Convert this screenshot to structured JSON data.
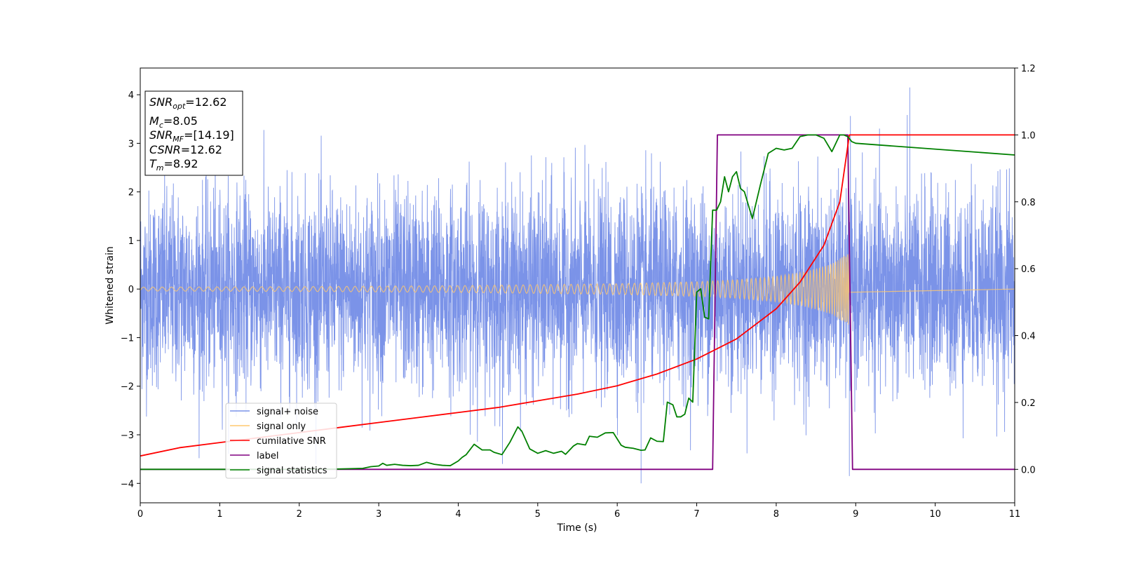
{
  "chart_data": {
    "type": "line",
    "xlabel": "Time (s)",
    "ylabel": "Whitened strain",
    "xlim": [
      0,
      11
    ],
    "ylim_left": [
      -4.4,
      4.55
    ],
    "ylim_right": [
      -0.1,
      1.2
    ],
    "x_ticks": [
      0,
      1,
      2,
      3,
      4,
      5,
      6,
      7,
      8,
      9,
      10,
      11
    ],
    "y_ticks_left": [
      4,
      3,
      2,
      1,
      0,
      -1,
      -2,
      -3,
      -4
    ],
    "y_ticks_left_labels": [
      "4",
      "3",
      "2",
      "1",
      "0",
      "−1",
      "−2",
      "−3",
      "−4"
    ],
    "y_ticks_right": [
      1.2,
      1.0,
      0.8,
      0.6,
      0.4,
      0.2,
      0.0
    ],
    "y_ticks_right_labels": [
      "1.2",
      "1.0",
      "0.8",
      "0.6",
      "0.4",
      "0.2",
      "0.0"
    ],
    "legend_position": "lower-left",
    "info_box": {
      "snr_opt": "=12.62",
      "mc": "=8.05",
      "snr_mf": "=[14.19]",
      "csnr": "=12.62",
      "tm": "=8.92"
    },
    "series": [
      {
        "name": "signal+ noise",
        "axis": "left",
        "color": "#7b93e8",
        "description": "whitened strain noise, roughly within ±3 with spikes to about 4.2",
        "noise_sigma": 1.0,
        "peaks": [
          {
            "x": 9.68,
            "y": 4.15
          },
          {
            "x": 6.3,
            "y": -4.0
          },
          {
            "x": 8.92,
            "y": -3.85
          }
        ]
      },
      {
        "name": "signal only",
        "axis": "left",
        "color": "#ffc86e",
        "envelope": {
          "x": [
            0,
            2,
            4,
            6,
            7,
            7.5,
            8,
            8.4,
            8.7,
            8.85,
            8.92
          ],
          "amplitude": [
            0.04,
            0.05,
            0.07,
            0.11,
            0.15,
            0.19,
            0.26,
            0.37,
            0.52,
            0.68,
            0.75
          ]
        },
        "end_x": 8.92
      },
      {
        "name": "cumilative SNR",
        "axis": "right",
        "color": "#ff0000",
        "x": [
          0,
          0.5,
          1,
          1.5,
          2,
          2.5,
          3,
          3.5,
          4,
          4.5,
          5,
          5.5,
          6,
          6.5,
          7,
          7.5,
          8,
          8.3,
          8.6,
          8.8,
          8.92,
          11
        ],
        "y": [
          0.04,
          0.065,
          0.08,
          0.095,
          0.11,
          0.125,
          0.14,
          0.155,
          0.17,
          0.185,
          0.205,
          0.225,
          0.25,
          0.285,
          0.33,
          0.39,
          0.48,
          0.56,
          0.67,
          0.8,
          1.0,
          1.0
        ]
      },
      {
        "name": "label",
        "axis": "right",
        "color": "#800080",
        "x": [
          0,
          7.2,
          7.26,
          8.9,
          8.96,
          11
        ],
        "y": [
          0,
          0,
          1,
          1,
          0,
          0
        ]
      },
      {
        "name": "signal statistics",
        "axis": "right",
        "color": "#008000",
        "x": [
          0,
          1,
          2,
          2.5,
          2.8,
          2.9,
          3.0,
          3.05,
          3.1,
          3.2,
          3.3,
          3.4,
          3.5,
          3.6,
          3.7,
          3.8,
          3.9,
          4.0,
          4.05,
          4.1,
          4.2,
          4.3,
          4.4,
          4.45,
          4.55,
          4.65,
          4.75,
          4.8,
          4.9,
          5.0,
          5.1,
          5.2,
          5.3,
          5.35,
          5.45,
          5.5,
          5.6,
          5.65,
          5.75,
          5.85,
          5.95,
          6.05,
          6.1,
          6.2,
          6.3,
          6.35,
          6.42,
          6.5,
          6.58,
          6.63,
          6.7,
          6.75,
          6.8,
          6.85,
          6.9,
          6.95,
          7.0,
          7.05,
          7.1,
          7.15,
          7.2,
          7.25,
          7.3,
          7.35,
          7.4,
          7.45,
          7.5,
          7.55,
          7.6,
          7.7,
          7.8,
          7.9,
          8.0,
          8.1,
          8.2,
          8.3,
          8.4,
          8.5,
          8.6,
          8.7,
          8.8,
          8.85,
          8.9,
          8.95,
          9.0,
          11
        ],
        "y": [
          0,
          0,
          0,
          0.001,
          0.003,
          0.008,
          0.01,
          0.018,
          0.012,
          0.015,
          0.012,
          0.011,
          0.012,
          0.021,
          0.015,
          0.012,
          0.011,
          0.025,
          0.036,
          0.044,
          0.075,
          0.058,
          0.058,
          0.051,
          0.044,
          0.081,
          0.127,
          0.114,
          0.061,
          0.048,
          0.056,
          0.048,
          0.054,
          0.045,
          0.07,
          0.077,
          0.073,
          0.099,
          0.096,
          0.109,
          0.11,
          0.072,
          0.066,
          0.063,
          0.057,
          0.058,
          0.094,
          0.084,
          0.083,
          0.201,
          0.193,
          0.157,
          0.157,
          0.165,
          0.213,
          0.201,
          0.53,
          0.54,
          0.455,
          0.45,
          0.775,
          0.775,
          0.8,
          0.875,
          0.83,
          0.875,
          0.89,
          0.84,
          0.83,
          0.75,
          0.85,
          0.945,
          0.96,
          0.955,
          0.96,
          0.995,
          1.0,
          1.0,
          0.99,
          0.95,
          1.0,
          1.0,
          0.995,
          0.98,
          0.975,
          0.94
        ]
      }
    ]
  },
  "legend": {
    "items": [
      {
        "label": "signal+ noise",
        "color": "#7b93e8"
      },
      {
        "label": "signal only",
        "color": "#ffc86e"
      },
      {
        "label": "cumilative SNR",
        "color": "#ff0000"
      },
      {
        "label": "label",
        "color": "#800080"
      },
      {
        "label": "signal statistics",
        "color": "#008000"
      }
    ]
  }
}
